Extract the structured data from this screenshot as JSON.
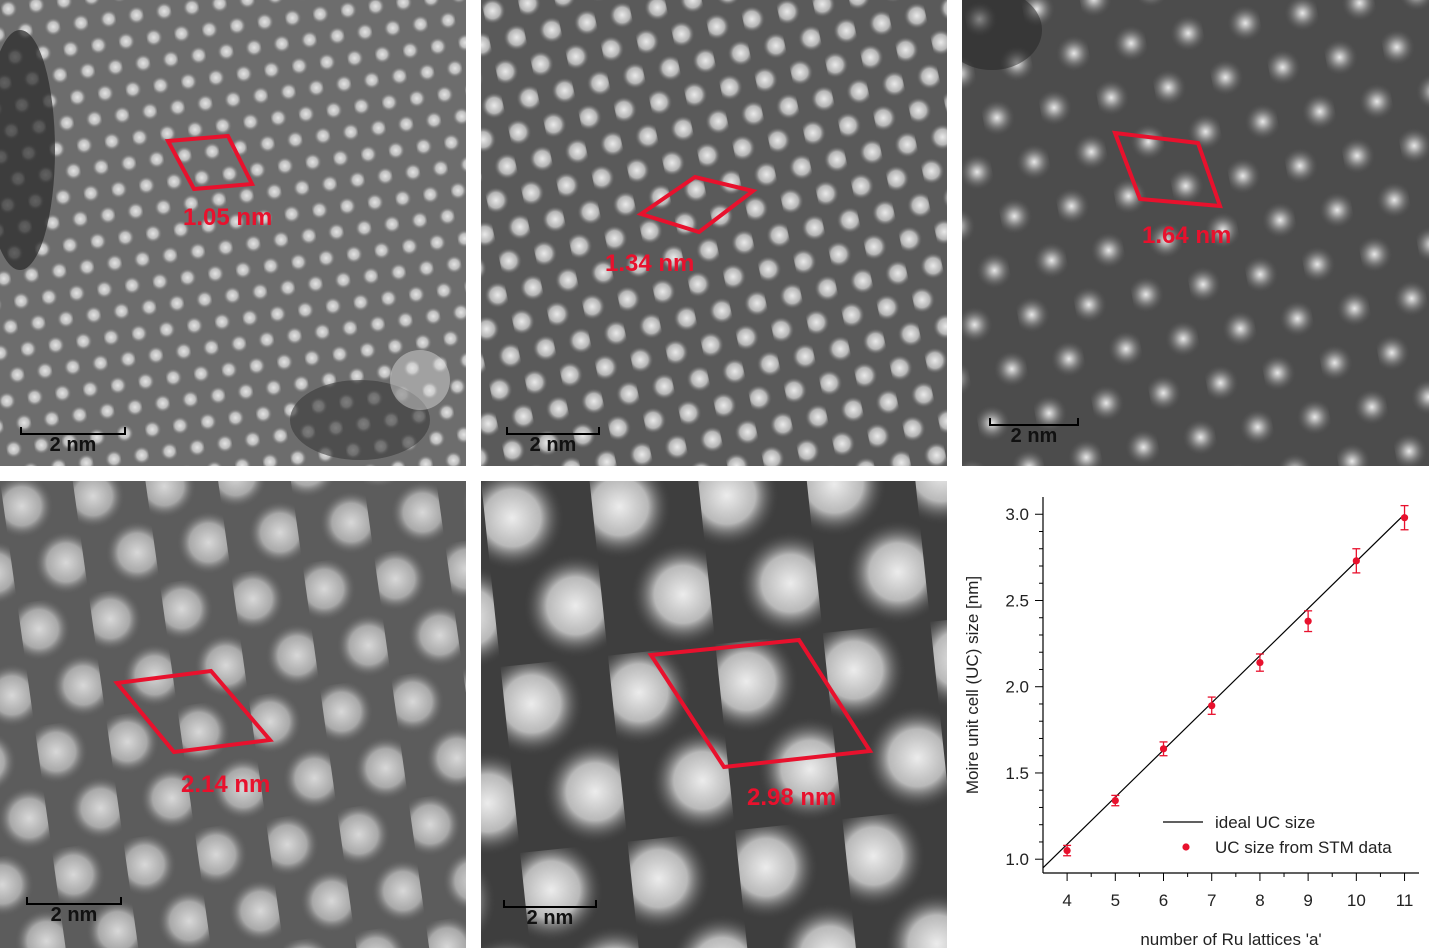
{
  "panels": [
    {
      "id": "p1",
      "uc_label": "1.05 nm",
      "scale_label": "2 nm",
      "period": 28,
      "bright": 1.0
    },
    {
      "id": "p2",
      "uc_label": "1.34 nm",
      "scale_label": "2 nm",
      "period": 36,
      "bright": 1.05
    },
    {
      "id": "p3",
      "uc_label": "1.64 nm",
      "scale_label": "2 nm",
      "period": 58,
      "bright": 0.75
    },
    {
      "id": "p4",
      "uc_label": "2.14 nm",
      "scale_label": "2 nm",
      "period": 72,
      "bright": 1.0
    },
    {
      "id": "p5",
      "uc_label": "2.98 nm",
      "scale_label": "2 nm",
      "period": 108,
      "bright": 1.1
    }
  ],
  "chart_data": {
    "type": "scatter",
    "xlabel": "number of Ru lattices 'a'",
    "ylabel": "Moire unit cell (UC) size [nm]",
    "xticks": [
      4,
      5,
      6,
      7,
      8,
      9,
      10,
      11
    ],
    "yticks": [
      "1.0",
      "1.5",
      "2.0",
      "2.5",
      "3.0"
    ],
    "xlim": [
      3.5,
      11.3
    ],
    "ylim": [
      0.92,
      3.1
    ],
    "series": [
      {
        "name": "ideal UC size",
        "type": "line",
        "x": [
          3.5,
          11.0
        ],
        "y": [
          0.95,
          3.0
        ],
        "color": "#000000"
      },
      {
        "name": "UC size from STM data",
        "type": "scatter",
        "color": "#e8112d",
        "x": [
          4,
          5,
          6,
          7,
          8,
          9,
          10,
          11
        ],
        "y": [
          1.05,
          1.34,
          1.64,
          1.89,
          2.14,
          2.38,
          2.73,
          2.98
        ],
        "err": [
          0.03,
          0.03,
          0.04,
          0.05,
          0.05,
          0.06,
          0.07,
          0.07
        ]
      }
    ],
    "legend": "bottom-right"
  }
}
